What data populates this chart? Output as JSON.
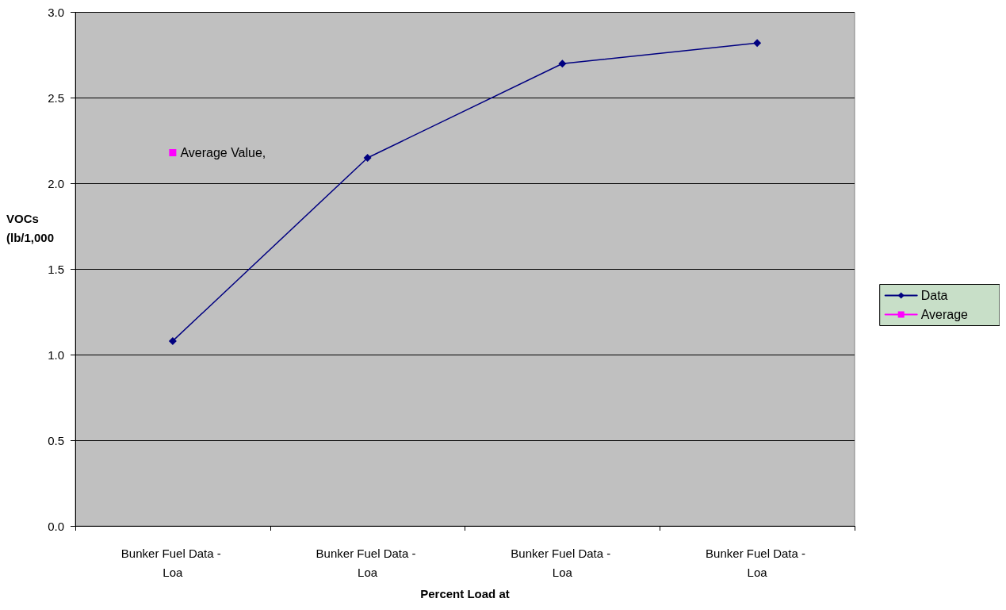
{
  "chart_data": {
    "type": "line",
    "xlabel": "Percent Load at",
    "ylabel": "VOCs (lb/1,000",
    "categories": [
      "Bunker Fuel Data - Loa",
      "Bunker Fuel Data - Loa",
      "Bunker Fuel Data - Loa",
      "Bunker Fuel Data - Loa"
    ],
    "series": [
      {
        "name": "Data",
        "color": "#000080",
        "marker": "diamond",
        "values": [
          1.08,
          2.15,
          2.7,
          2.82
        ]
      },
      {
        "name": "Average",
        "color": "#ff00ff",
        "marker": "square",
        "values": [
          2.18,
          null,
          null,
          null
        ],
        "value_labels": [
          "Average Value,",
          null,
          null,
          null
        ]
      }
    ],
    "ylim": [
      0,
      3
    ],
    "yticks": [
      {
        "value": 0,
        "label": "0.0"
      },
      0.5,
      {
        "value": 1,
        "label": "1.0"
      },
      1.5,
      {
        "value": 2,
        "label": "2.0"
      },
      2.5,
      {
        "value": 3,
        "label": "3.0"
      }
    ],
    "grid": "y",
    "legend": "right",
    "line_style": "solid"
  }
}
